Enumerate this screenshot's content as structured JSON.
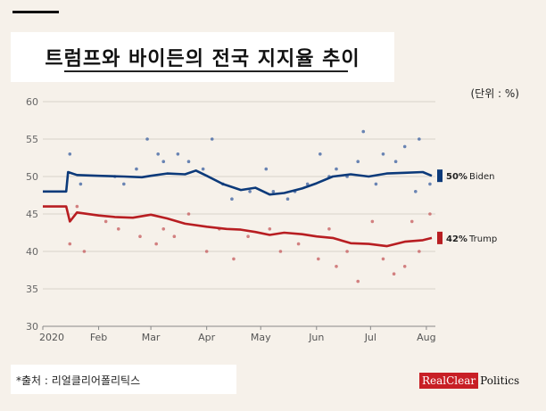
{
  "header": {
    "title": "트럼프와 바이든의 전국 지지율 추이",
    "unit": "(단위 :  %)"
  },
  "footer": {
    "source": "*출처 :  리얼클리어폴리틱스",
    "logo_part1": "RealClear",
    "logo_part2": "Politics"
  },
  "chart_data": {
    "type": "line",
    "title": "트럼프와 바이든의 전국 지지율 추이",
    "xlabel": "",
    "ylabel": "",
    "x_ticks": [
      "2020",
      "Feb",
      "Mar",
      "Apr",
      "May",
      "Jun",
      "Jul",
      "Aug"
    ],
    "y_ticks": [
      30,
      35,
      40,
      45,
      50,
      55,
      60
    ],
    "ylim": [
      30,
      60
    ],
    "grid": true,
    "series": [
      {
        "name": "Biden",
        "end_label": "50%",
        "color": "#0c3a7a",
        "values": [
          [
            "2020-01-01",
            48
          ],
          [
            "2020-01-14",
            48
          ],
          [
            "2020-01-15",
            50.6
          ],
          [
            "2020-01-20",
            50.2
          ],
          [
            "2020-02-01",
            50.1
          ],
          [
            "2020-02-15",
            50.0
          ],
          [
            "2020-02-25",
            49.9
          ],
          [
            "2020-03-01",
            50.1
          ],
          [
            "2020-03-10",
            50.4
          ],
          [
            "2020-03-20",
            50.3
          ],
          [
            "2020-03-26",
            50.8
          ],
          [
            "2020-04-01",
            50.1
          ],
          [
            "2020-04-10",
            49.0
          ],
          [
            "2020-04-20",
            48.2
          ],
          [
            "2020-04-28",
            48.5
          ],
          [
            "2020-05-06",
            47.6
          ],
          [
            "2020-05-14",
            47.8
          ],
          [
            "2020-05-24",
            48.4
          ],
          [
            "2020-06-01",
            49.1
          ],
          [
            "2020-06-10",
            50.0
          ],
          [
            "2020-06-20",
            50.3
          ],
          [
            "2020-06-30",
            50.0
          ],
          [
            "2020-07-10",
            50.4
          ],
          [
            "2020-07-20",
            50.5
          ],
          [
            "2020-07-30",
            50.6
          ],
          [
            "2020-08-04",
            50.1
          ]
        ]
      },
      {
        "name": "Trump",
        "end_label": "42%",
        "color": "#b81e22",
        "values": [
          [
            "2020-01-01",
            46
          ],
          [
            "2020-01-14",
            46
          ],
          [
            "2020-01-16",
            44.0
          ],
          [
            "2020-01-20",
            45.2
          ],
          [
            "2020-02-01",
            44.8
          ],
          [
            "2020-02-10",
            44.6
          ],
          [
            "2020-02-20",
            44.5
          ],
          [
            "2020-03-01",
            44.9
          ],
          [
            "2020-03-10",
            44.4
          ],
          [
            "2020-03-20",
            43.7
          ],
          [
            "2020-04-01",
            43.3
          ],
          [
            "2020-04-12",
            43.0
          ],
          [
            "2020-04-20",
            42.9
          ],
          [
            "2020-04-28",
            42.6
          ],
          [
            "2020-05-06",
            42.2
          ],
          [
            "2020-05-14",
            42.5
          ],
          [
            "2020-05-24",
            42.3
          ],
          [
            "2020-06-01",
            42.0
          ],
          [
            "2020-06-10",
            41.8
          ],
          [
            "2020-06-20",
            41.1
          ],
          [
            "2020-06-30",
            41.0
          ],
          [
            "2020-07-10",
            40.7
          ],
          [
            "2020-07-20",
            41.3
          ],
          [
            "2020-07-30",
            41.5
          ],
          [
            "2020-08-04",
            41.8
          ]
        ]
      }
    ],
    "scatter": {
      "Biden": [
        [
          "2020-01-16",
          53
        ],
        [
          "2020-01-22",
          49
        ],
        [
          "2020-02-10",
          50
        ],
        [
          "2020-02-15",
          49
        ],
        [
          "2020-02-22",
          51
        ],
        [
          "2020-02-28",
          55
        ],
        [
          "2020-03-05",
          53
        ],
        [
          "2020-03-08",
          52
        ],
        [
          "2020-03-16",
          53
        ],
        [
          "2020-03-22",
          52
        ],
        [
          "2020-03-30",
          51
        ],
        [
          "2020-04-04",
          55
        ],
        [
          "2020-04-10",
          49
        ],
        [
          "2020-04-15",
          47
        ],
        [
          "2020-04-25",
          48
        ],
        [
          "2020-05-04",
          51
        ],
        [
          "2020-05-08",
          48
        ],
        [
          "2020-05-16",
          47
        ],
        [
          "2020-05-20",
          48
        ],
        [
          "2020-05-27",
          49
        ],
        [
          "2020-06-03",
          53
        ],
        [
          "2020-06-08",
          50
        ],
        [
          "2020-06-12",
          51
        ],
        [
          "2020-06-18",
          50
        ],
        [
          "2020-06-24",
          52
        ],
        [
          "2020-06-27",
          56
        ],
        [
          "2020-07-04",
          49
        ],
        [
          "2020-07-08",
          53
        ],
        [
          "2020-07-15",
          52
        ],
        [
          "2020-07-20",
          54
        ],
        [
          "2020-07-26",
          48
        ],
        [
          "2020-07-28",
          55
        ],
        [
          "2020-08-03",
          49
        ]
      ],
      "Trump": [
        [
          "2020-01-16",
          41
        ],
        [
          "2020-01-20",
          46
        ],
        [
          "2020-01-24",
          40
        ],
        [
          "2020-02-05",
          44
        ],
        [
          "2020-02-12",
          43
        ],
        [
          "2020-02-24",
          42
        ],
        [
          "2020-03-04",
          41
        ],
        [
          "2020-03-08",
          43
        ],
        [
          "2020-03-14",
          42
        ],
        [
          "2020-03-22",
          45
        ],
        [
          "2020-04-01",
          40
        ],
        [
          "2020-04-08",
          43
        ],
        [
          "2020-04-16",
          39
        ],
        [
          "2020-04-24",
          42
        ],
        [
          "2020-05-06",
          43
        ],
        [
          "2020-05-12",
          40
        ],
        [
          "2020-05-22",
          41
        ],
        [
          "2020-06-02",
          39
        ],
        [
          "2020-06-08",
          43
        ],
        [
          "2020-06-12",
          38
        ],
        [
          "2020-06-18",
          40
        ],
        [
          "2020-06-24",
          36
        ],
        [
          "2020-07-02",
          44
        ],
        [
          "2020-07-08",
          39
        ],
        [
          "2020-07-14",
          37
        ],
        [
          "2020-07-20",
          38
        ],
        [
          "2020-07-24",
          44
        ],
        [
          "2020-07-28",
          40
        ],
        [
          "2020-08-03",
          45
        ]
      ]
    }
  }
}
